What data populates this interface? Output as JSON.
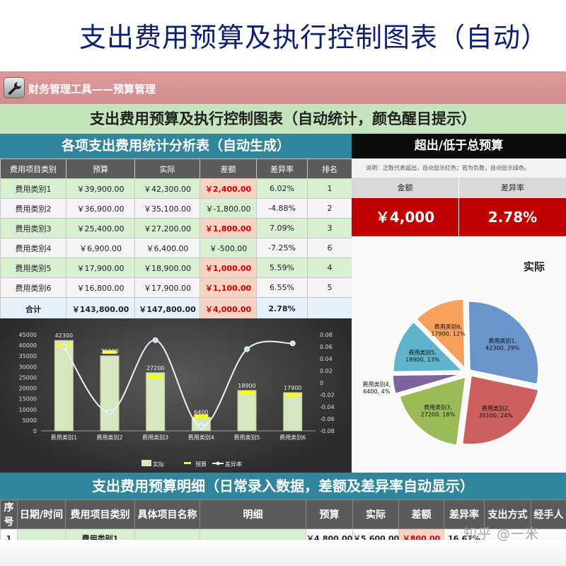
{
  "page_title": "支出费用预算及执行控制图表（自动）",
  "app_bar": {
    "icon": "wrench-icon",
    "label": "财务管理工具——预算管理"
  },
  "main_title": "支出费用预算及执行控制图表（自动统计，颜色醒目提示）",
  "stats_table": {
    "title": "各项支出费用统计分析表（自动生成）",
    "columns": [
      "费用项目类别",
      "预算",
      "实际",
      "差额",
      "差异率",
      "排名"
    ],
    "rows": [
      {
        "cat": "费用类别1",
        "budget": "￥39,900.00",
        "actual": "￥42,300.00",
        "diff": "￥2,400.00",
        "rate": "6.02%",
        "rank": "1",
        "over": true
      },
      {
        "cat": "费用类别2",
        "budget": "￥36,900.00",
        "actual": "￥35,100.00",
        "diff": "￥-1,800.00",
        "rate": "-4.88%",
        "rank": "2",
        "over": false
      },
      {
        "cat": "费用类别3",
        "budget": "￥25,400.00",
        "actual": "￥27,200.00",
        "diff": "￥1,800.00",
        "rate": "7.09%",
        "rank": "3",
        "over": true
      },
      {
        "cat": "费用类别4",
        "budget": "￥6,900.00",
        "actual": "￥6,400.00",
        "diff": "￥-500.00",
        "rate": "-7.25%",
        "rank": "6",
        "over": false
      },
      {
        "cat": "费用类别5",
        "budget": "￥17,900.00",
        "actual": "￥18,900.00",
        "diff": "￥1,000.00",
        "rate": "5.59%",
        "rank": "4",
        "over": true
      },
      {
        "cat": "费用类别6",
        "budget": "￥16,800.00",
        "actual": "￥17,900.00",
        "diff": "￥1,100.00",
        "rate": "6.55%",
        "rank": "5",
        "over": true
      }
    ],
    "total": {
      "cat": "合计",
      "budget": "￥143,800.00",
      "actual": "￥147,800.00",
      "diff": "￥4,000.00",
      "rate": "2.78%",
      "rank": ""
    }
  },
  "summary": {
    "title": "超出/低于总预算",
    "note": "说明：正数代表超出，自动显示红色；若为负数，自动显示绿色。",
    "amount_label": "金额",
    "rate_label": "差异率",
    "amount": "￥4,000",
    "rate": "2.78%"
  },
  "colors": {
    "teal": "#31869b",
    "over_red": "#c00000",
    "green_fill": "#d8efd2"
  },
  "chart_data": [
    {
      "type": "bar",
      "categories": [
        "费用类别1",
        "费用类别2",
        "费用类别3",
        "费用类别4",
        "费用类别5",
        "费用类别6"
      ],
      "series": [
        {
          "name": "实际",
          "type": "bar",
          "values": [
            42300,
            35100,
            27200,
            6400,
            18900,
            17900
          ]
        },
        {
          "name": "预算",
          "type": "marker",
          "values": [
            39900,
            36900,
            25400,
            6900,
            17900,
            16800
          ]
        },
        {
          "name": "差异率",
          "type": "line",
          "axis": "right",
          "values": [
            0.0602,
            -0.0488,
            0.0709,
            -0.0725,
            0.0559,
            0.0655
          ]
        }
      ],
      "data_labels": [
        "42300",
        "35100",
        "27200",
        "6400",
        "18900",
        "17900"
      ],
      "y_ticks": [
        "45000",
        "40000",
        "35000",
        "30000",
        "25000",
        "20000",
        "15000",
        "10000",
        "5000",
        "0"
      ],
      "y2_ticks": [
        "0.08",
        "0.06",
        "0.04",
        "0.02",
        "0",
        "-0.02",
        "-0.04",
        "-0.06",
        "-0.08"
      ],
      "ylim": [
        0,
        45000
      ],
      "y2lim": [
        -0.08,
        0.08
      ],
      "legend_position": "bottom"
    },
    {
      "type": "pie",
      "title": "实际",
      "slices": [
        {
          "label": "费用类别1,",
          "detail": "42300, 29%",
          "value": 42300,
          "color": "#6a95cc"
        },
        {
          "label": "费用类别2,",
          "detail": "35100, 24%",
          "value": 35100,
          "color": "#cd5f5d"
        },
        {
          "label": "费用类别3,",
          "detail": "27200, 18%",
          "value": 27200,
          "color": "#9bbb59"
        },
        {
          "label": "费用类别4,",
          "detail": "6400, 4%",
          "value": 6400,
          "color": "#8064a2"
        },
        {
          "label": "费用类别5,",
          "detail": "18900, 13%",
          "value": 18900,
          "color": "#5fb4cc"
        },
        {
          "label": "费用类别6,",
          "detail": "17900, 12%",
          "value": 17900,
          "color": "#f6a25c"
        }
      ]
    }
  ],
  "detail_section": {
    "title": "支出费用预算明细（日常录入数据，差额及差异率自动显示）",
    "columns": [
      "序号",
      "日期/时间",
      "费用项目类别",
      "具体项目名称",
      "明细",
      "预算",
      "实际",
      "差额",
      "差异率",
      "支出方式",
      "经手人"
    ],
    "first_row": {
      "seq": "1",
      "date": "",
      "cat": "费用类别1",
      "name": "",
      "detail": "",
      "budget": "￥4,800.00",
      "actual": "￥5,600.00",
      "diff": "￥800.00",
      "rate": "16.67%",
      "pay": "",
      "handler": ""
    }
  },
  "watermark": "知乎 @一米"
}
